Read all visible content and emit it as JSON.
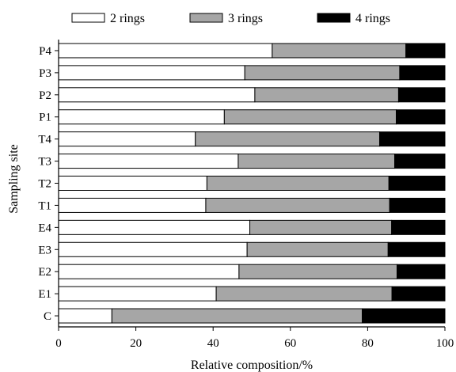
{
  "chart_data": {
    "type": "bar",
    "orientation": "horizontal",
    "stacked": true,
    "title": "",
    "xlabel": "Relative composition/%",
    "ylabel": "Sampling site",
    "xlim": [
      0,
      100
    ],
    "xticks": [
      0,
      20,
      40,
      60,
      80,
      100
    ],
    "grid": false,
    "legend_position": "top",
    "categories": [
      "P4",
      "P3",
      "P2",
      "P1",
      "T4",
      "T3",
      "T2",
      "T1",
      "E4",
      "E3",
      "E2",
      "E1",
      "C"
    ],
    "series": [
      {
        "name": "2 rings",
        "color": "#ffffff",
        "values": [
          55.3,
          48.2,
          50.8,
          42.9,
          35.4,
          46.5,
          38.4,
          38.1,
          49.5,
          48.8,
          46.7,
          40.8,
          13.8
        ]
      },
      {
        "name": "3 rings",
        "color": "#a6a6a6",
        "values": [
          34.6,
          40.1,
          37.2,
          44.5,
          47.7,
          40.5,
          47.1,
          47.6,
          36.7,
          36.5,
          40.9,
          45.5,
          64.8
        ]
      },
      {
        "name": "4 rings",
        "color": "#000000",
        "values": [
          10.1,
          11.7,
          12.0,
          12.6,
          16.9,
          13.0,
          14.5,
          14.3,
          13.8,
          14.7,
          12.4,
          13.7,
          21.4
        ]
      }
    ]
  }
}
